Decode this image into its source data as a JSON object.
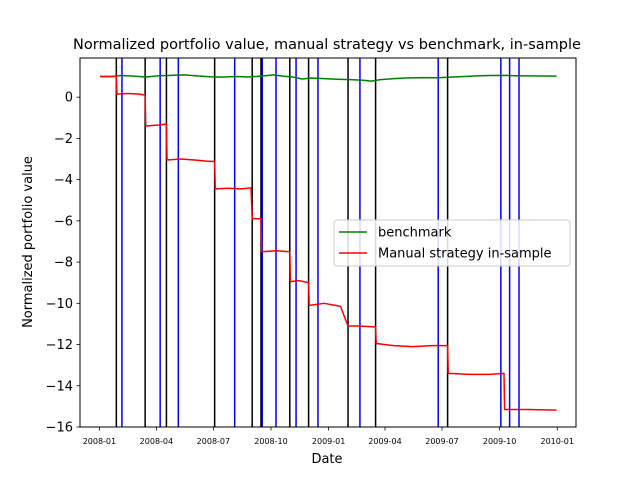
{
  "chart_data": {
    "type": "line",
    "title": "Normalized portfolio value, manual strategy vs benchmark, in-sample",
    "xlabel": "Date",
    "ylabel": "Normalized portfolio value",
    "xlim": [
      "2007-12-01",
      "2010-01-31"
    ],
    "ylim": [
      -16,
      1.9
    ],
    "grid": false,
    "legend_position": "center-right",
    "x_ticks": [
      "2008-01-01",
      "2008-04-01",
      "2008-07-01",
      "2008-10-01",
      "2009-01-01",
      "2009-04-01",
      "2009-07-01",
      "2009-10-01",
      "2010-01-01"
    ],
    "x_tick_labels": [
      "2008-01",
      "2008-04",
      "2008-07",
      "2008-10",
      "2009-01",
      "2009-04",
      "2009-07",
      "2009-10",
      "2010-01"
    ],
    "y_ticks": [
      0,
      -2,
      -4,
      -6,
      -8,
      -10,
      -12,
      -14,
      -16
    ],
    "y_tick_labels": [
      "0",
      "−2",
      "−4",
      "−6",
      "−8",
      "−10",
      "−12",
      "−14",
      "−16"
    ],
    "series": [
      {
        "name": "benchmark",
        "color": "#008000",
        "points": [
          [
            "2008-01-02",
            1.0
          ],
          [
            "2008-01-20",
            1.0
          ],
          [
            "2008-02-05",
            1.05
          ],
          [
            "2008-02-25",
            1.02
          ],
          [
            "2008-03-15",
            0.98
          ],
          [
            "2008-04-05",
            1.04
          ],
          [
            "2008-04-25",
            1.06
          ],
          [
            "2008-05-15",
            1.08
          ],
          [
            "2008-06-05",
            1.03
          ],
          [
            "2008-06-25",
            0.99
          ],
          [
            "2008-07-15",
            0.97
          ],
          [
            "2008-08-05",
            1.0
          ],
          [
            "2008-08-25",
            0.98
          ],
          [
            "2008-09-15",
            1.02
          ],
          [
            "2008-10-05",
            1.08
          ],
          [
            "2008-10-20",
            1.02
          ],
          [
            "2008-11-05",
            0.98
          ],
          [
            "2008-11-20",
            0.88
          ],
          [
            "2008-12-05",
            0.93
          ],
          [
            "2008-12-25",
            0.9
          ],
          [
            "2009-01-15",
            0.87
          ],
          [
            "2009-02-05",
            0.85
          ],
          [
            "2009-02-25",
            0.82
          ],
          [
            "2009-03-10",
            0.78
          ],
          [
            "2009-03-25",
            0.85
          ],
          [
            "2009-04-15",
            0.9
          ],
          [
            "2009-05-05",
            0.93
          ],
          [
            "2009-06-01",
            0.95
          ],
          [
            "2009-06-25",
            0.94
          ],
          [
            "2009-07-15",
            0.97
          ],
          [
            "2009-08-05",
            1.0
          ],
          [
            "2009-08-25",
            1.03
          ],
          [
            "2009-09-15",
            1.05
          ],
          [
            "2009-10-05",
            1.06
          ],
          [
            "2009-10-25",
            1.04
          ],
          [
            "2009-11-15",
            1.03
          ],
          [
            "2009-12-31",
            1.02
          ]
        ]
      },
      {
        "name": "Manual strategy in-sample",
        "color": "#ff0000",
        "points": [
          [
            "2008-01-02",
            1.0
          ],
          [
            "2008-01-28",
            1.0
          ],
          [
            "2008-01-29",
            0.15
          ],
          [
            "2008-02-15",
            0.18
          ],
          [
            "2008-03-05",
            0.15
          ],
          [
            "2008-03-14",
            0.1
          ],
          [
            "2008-03-15",
            -1.4
          ],
          [
            "2008-04-05",
            -1.35
          ],
          [
            "2008-04-17",
            -1.3
          ],
          [
            "2008-04-18",
            -3.05
          ],
          [
            "2008-05-10",
            -3.0
          ],
          [
            "2008-06-01",
            -3.05
          ],
          [
            "2008-06-20",
            -3.1
          ],
          [
            "2008-07-03",
            -3.12
          ],
          [
            "2008-07-04",
            -4.45
          ],
          [
            "2008-07-25",
            -4.42
          ],
          [
            "2008-08-15",
            -4.45
          ],
          [
            "2008-08-30",
            -4.4
          ],
          [
            "2008-09-01",
            -5.9
          ],
          [
            "2008-09-15",
            -5.9
          ],
          [
            "2008-09-16",
            -7.5
          ],
          [
            "2008-10-10",
            -7.45
          ],
          [
            "2008-10-31",
            -7.5
          ],
          [
            "2008-11-01",
            -8.95
          ],
          [
            "2008-11-15",
            -8.9
          ],
          [
            "2008-11-30",
            -9.0
          ],
          [
            "2008-12-01",
            -10.1
          ],
          [
            "2008-12-25",
            -10.0
          ],
          [
            "2009-01-20",
            -10.15
          ],
          [
            "2009-02-01",
            -11.1
          ],
          [
            "2009-02-20",
            -11.1
          ],
          [
            "2009-03-17",
            -11.15
          ],
          [
            "2009-03-18",
            -11.95
          ],
          [
            "2009-04-15",
            -12.05
          ],
          [
            "2009-05-15",
            -12.1
          ],
          [
            "2009-06-15",
            -12.05
          ],
          [
            "2009-07-10",
            -12.05
          ],
          [
            "2009-07-11",
            -13.4
          ],
          [
            "2009-08-15",
            -13.45
          ],
          [
            "2009-09-15",
            -13.45
          ],
          [
            "2009-10-08",
            -13.4
          ],
          [
            "2009-10-09",
            -15.15
          ],
          [
            "2009-11-15",
            -15.15
          ],
          [
            "2009-12-31",
            -15.18
          ]
        ]
      }
    ],
    "vertical_lines": {
      "black": [
        "2008-01-28",
        "2008-03-14",
        "2008-04-17",
        "2008-07-03",
        "2008-09-01",
        "2008-09-15",
        "2008-10-31",
        "2008-11-30",
        "2009-02-01",
        "2009-03-17",
        "2009-07-10"
      ],
      "blue": [
        "2008-02-06",
        "2008-04-07",
        "2008-05-06",
        "2008-08-04",
        "2008-09-17",
        "2008-10-09",
        "2008-11-10",
        "2008-12-15",
        "2009-02-20",
        "2009-06-25",
        "2009-10-03",
        "2009-10-17",
        "2009-11-01"
      ]
    },
    "colors": {
      "long_entry_line": "#0000ff",
      "short_entry_line": "#000000"
    }
  }
}
